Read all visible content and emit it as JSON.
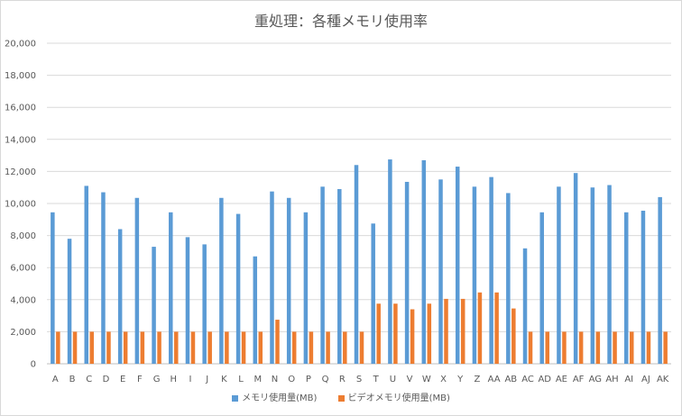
{
  "chart_data": {
    "type": "bar",
    "title": "重処理：各種メモリ使用率",
    "categories": [
      "A",
      "B",
      "C",
      "D",
      "E",
      "F",
      "G",
      "H",
      "I",
      "J",
      "K",
      "L",
      "M",
      "N",
      "O",
      "P",
      "Q",
      "R",
      "S",
      "T",
      "U",
      "V",
      "W",
      "X",
      "Y",
      "Z",
      "AA",
      "AB",
      "AC",
      "AD",
      "AE",
      "AF",
      "AG",
      "AH",
      "AI",
      "AJ",
      "AK"
    ],
    "series": [
      {
        "name": "メモリ使用量(MB)",
        "color": "#5b9bd5",
        "values": [
          9450,
          7800,
          11100,
          10700,
          8400,
          10350,
          7300,
          9450,
          7900,
          7450,
          10350,
          9350,
          6700,
          10750,
          10350,
          9450,
          11050,
          10900,
          12400,
          8750,
          12750,
          11350,
          12700,
          11500,
          12300,
          11050,
          11650,
          10650,
          7200,
          9450,
          11050,
          11900,
          11000,
          11150,
          9450,
          9550,
          10400
        ]
      },
      {
        "name": "ビデオメモリ使用量(MB)",
        "color": "#ed7d31",
        "values": [
          2000,
          2000,
          2000,
          2000,
          2000,
          2000,
          2000,
          2000,
          2000,
          2000,
          2000,
          2000,
          2000,
          2750,
          2000,
          2000,
          2000,
          2000,
          2000,
          3750,
          3750,
          3400,
          3750,
          4050,
          4050,
          4450,
          4450,
          3450,
          2000,
          2000,
          2000,
          2000,
          2000,
          2000,
          2000,
          2000,
          2000
        ]
      }
    ],
    "ylim": [
      0,
      20000
    ],
    "yticks": [
      "0",
      "2,000",
      "4,000",
      "6,000",
      "8,000",
      "10,000",
      "12,000",
      "14,000",
      "16,000",
      "18,000",
      "20,000"
    ],
    "grid": true,
    "legend_position": "bottom"
  }
}
